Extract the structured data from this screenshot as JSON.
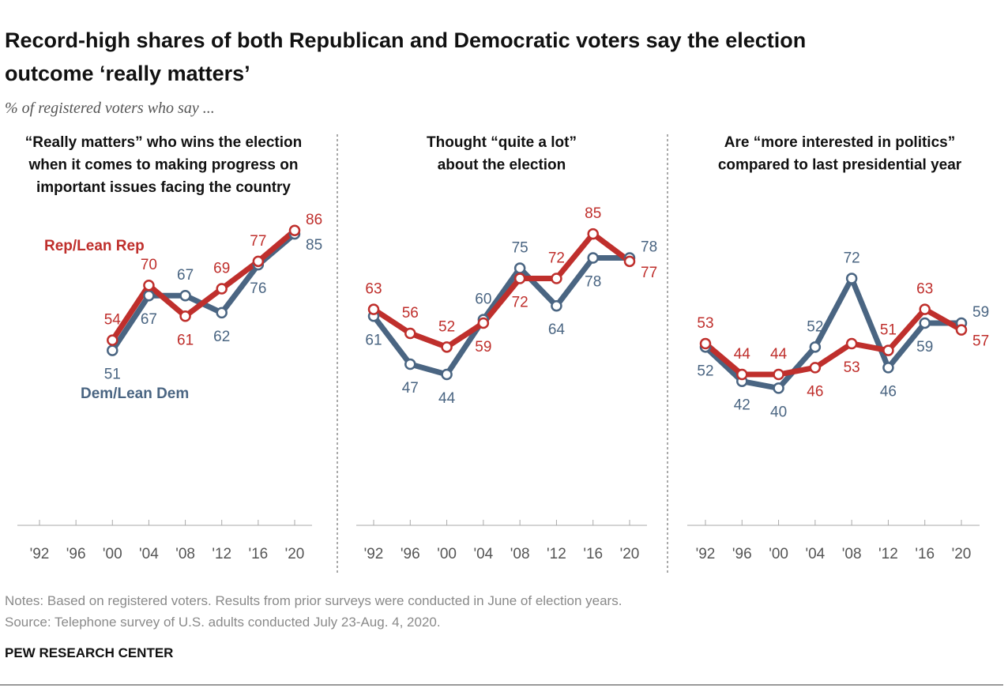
{
  "title": "Record-high shares of both Republican and Democratic voters say the election outcome ‘really matters’",
  "subtitle": "% of registered voters who say ...",
  "notes": "Notes: Based on registered voters. Results from prior surveys were conducted in June of election years.",
  "source": "Source: Telephone survey of U.S. adults conducted July 23-Aug. 4, 2020.",
  "brand": "PEW RESEARCH CENTER",
  "chart_data": [
    {
      "type": "line",
      "title": [
        "“Really matters” who wins the election",
        "when it comes to making progress on",
        "important issues facing the country"
      ],
      "categories": [
        "'92",
        "'96",
        "'00",
        "'04",
        "'08",
        "'12",
        "'16",
        "'20"
      ],
      "ylim": [
        0,
        100
      ],
      "series": [
        {
          "name": "Rep/Lean Rep",
          "color": "#bf2f2c",
          "values": [
            null,
            null,
            54,
            70,
            61,
            69,
            77,
            86
          ]
        },
        {
          "name": "Dem/Lean Dem",
          "color": "#4a6582",
          "values": [
            null,
            null,
            51,
            67,
            67,
            62,
            76,
            85
          ]
        }
      ]
    },
    {
      "type": "line",
      "title": [
        "Thought “quite a lot”",
        "about the election"
      ],
      "categories": [
        "'92",
        "'96",
        "'00",
        "'04",
        "'08",
        "'12",
        "'16",
        "'20"
      ],
      "ylim": [
        0,
        100
      ],
      "series": [
        {
          "color": "#bf2f2c",
          "values": [
            63,
            56,
            52,
            59,
            72,
            72,
            85,
            77
          ]
        },
        {
          "color": "#4a6582",
          "values": [
            61,
            47,
            44,
            60,
            75,
            64,
            78,
            78
          ]
        }
      ]
    },
    {
      "type": "line",
      "title": [
        "Are “more interested in politics”",
        "compared to last presidential year"
      ],
      "categories": [
        "'92",
        "'96",
        "'00",
        "'04",
        "'08",
        "'12",
        "'16",
        "'20"
      ],
      "ylim": [
        0,
        100
      ],
      "series": [
        {
          "color": "#bf2f2c",
          "values": [
            53,
            44,
            44,
            46,
            53,
            51,
            63,
            57
          ]
        },
        {
          "color": "#4a6582",
          "values": [
            52,
            42,
            40,
            52,
            72,
            46,
            59,
            59
          ]
        }
      ]
    }
  ]
}
